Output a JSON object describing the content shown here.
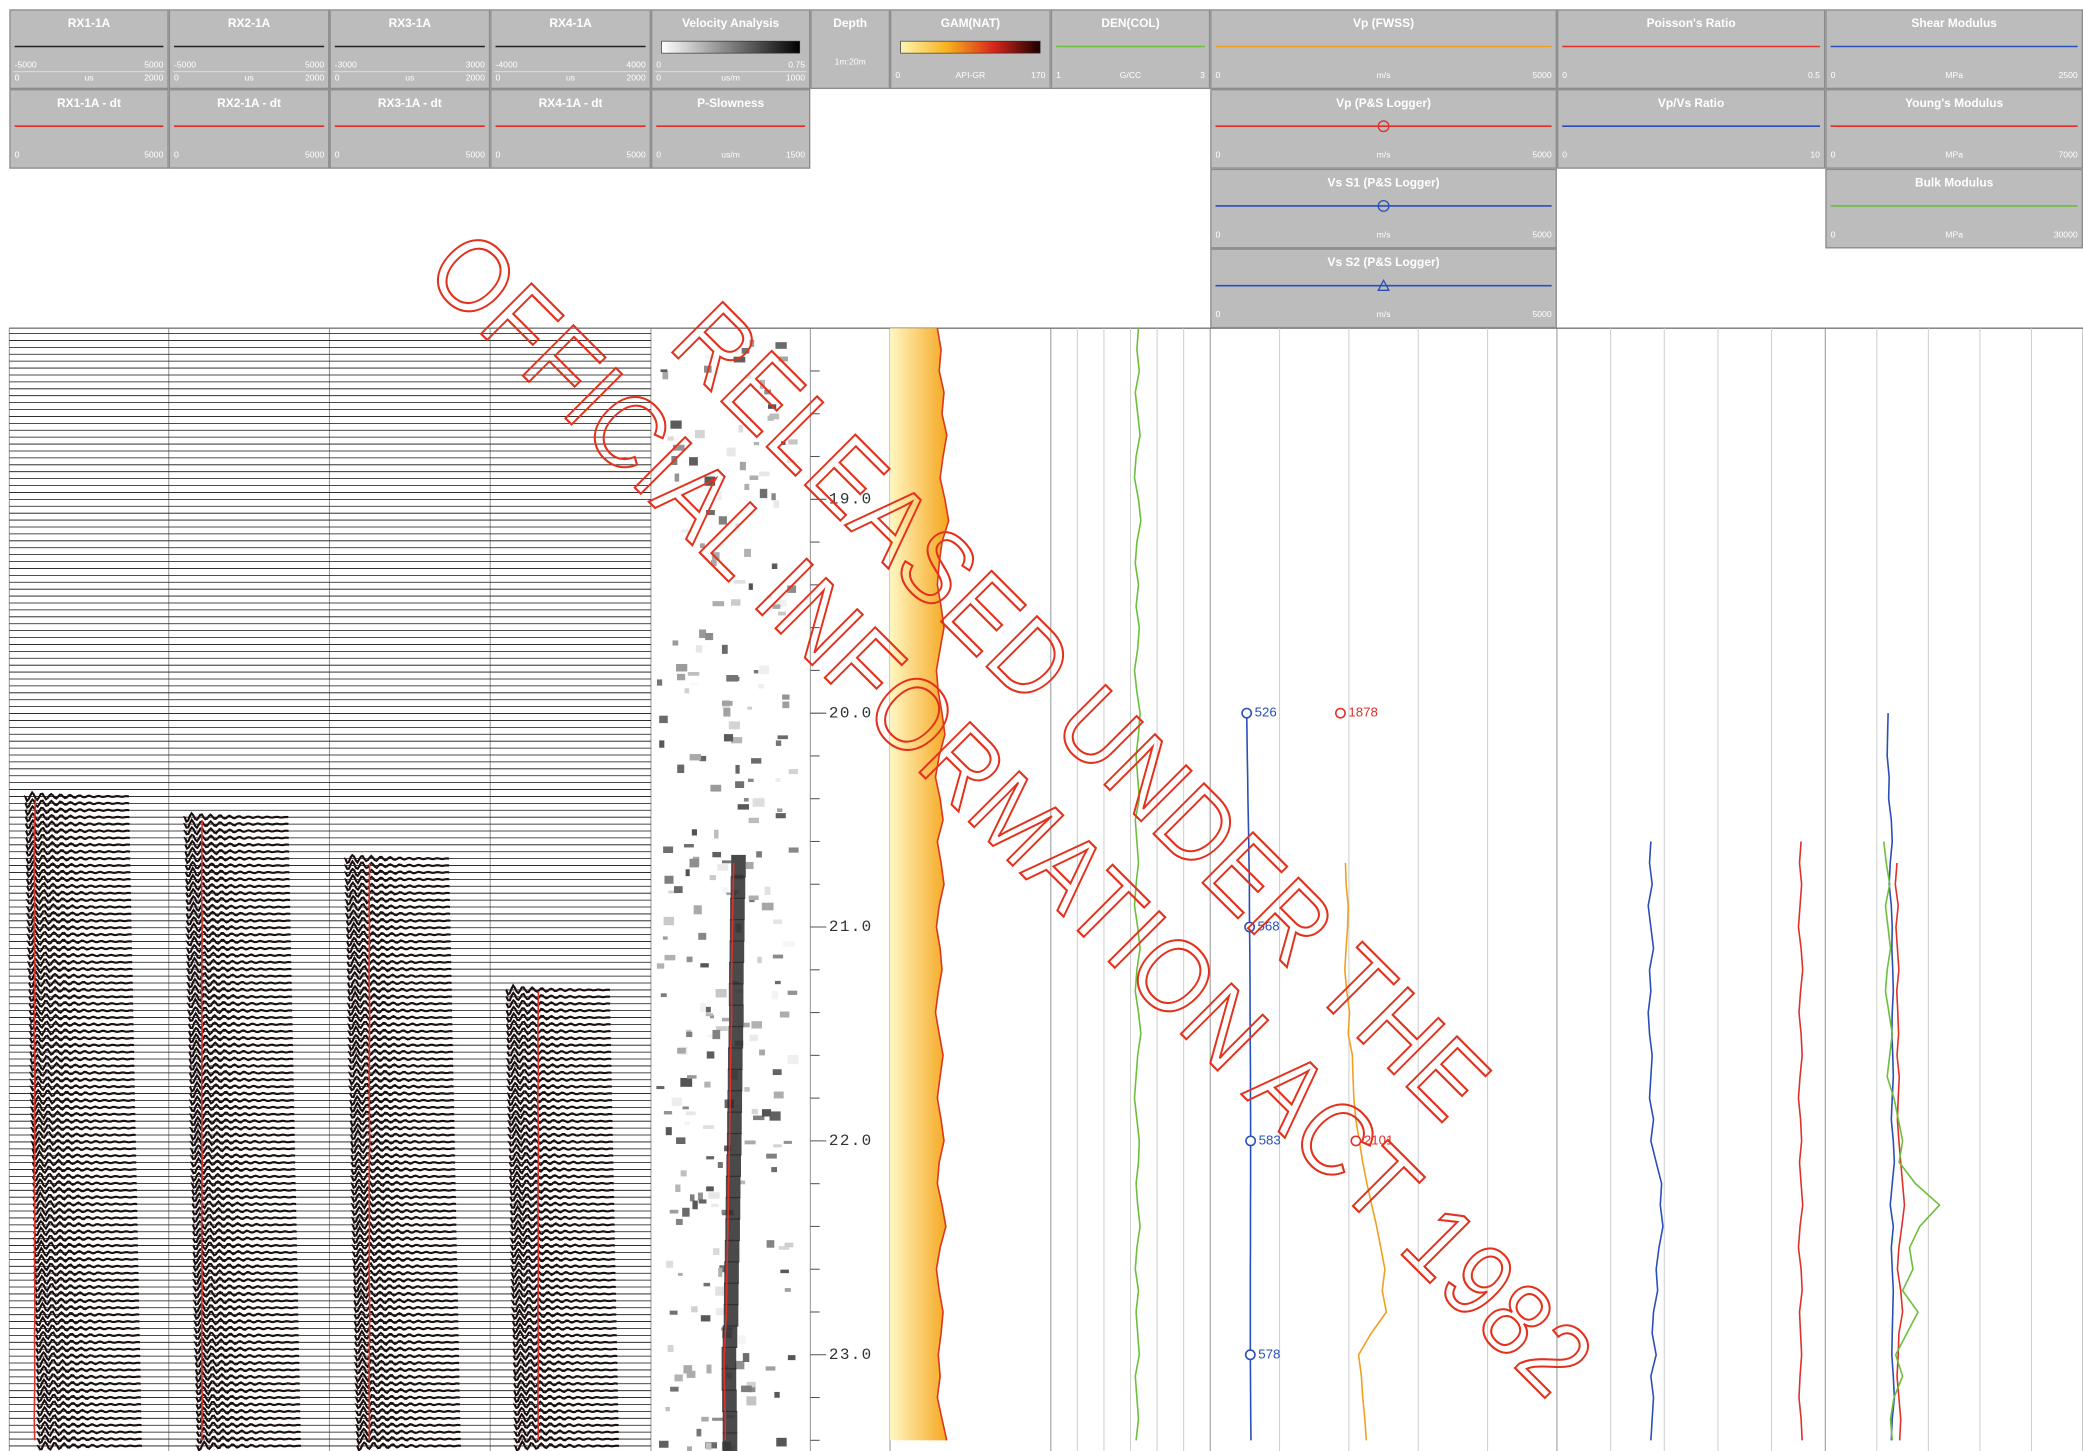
{
  "depths": [
    18.2,
    18.3,
    18.4,
    18.5,
    18.6,
    18.7,
    18.8,
    18.9,
    19,
    19.1,
    19.2,
    19.3,
    19.4,
    19.5,
    19.6,
    19.7,
    19.8,
    19.9,
    20,
    20.1,
    20.2,
    20.3,
    20.4,
    20.5,
    20.6,
    20.7,
    20.8,
    20.9,
    21,
    21.1,
    21.2,
    21.3,
    21.4,
    21.5,
    21.6,
    21.7,
    21.8,
    21.9,
    22,
    22.1,
    22.2,
    22.3,
    22.4,
    22.5,
    22.6,
    22.7,
    22.8,
    22.9,
    23,
    23.1,
    23.2,
    23.3,
    23.4
  ],
  "depth": {
    "lim": [
      18.2,
      23.45
    ],
    "ticks": [
      {
        "value": 19,
        "label": "19.0"
      },
      {
        "value": 20,
        "label": "20.0"
      },
      {
        "value": 21,
        "label": "21.0"
      },
      {
        "value": 22,
        "label": "22.0"
      },
      {
        "value": 23,
        "label": "23.0"
      }
    ],
    "minor_ticks": [
      18.4,
      18.6,
      18.8,
      19.2,
      19.4,
      19.6,
      19.8,
      20.2,
      20.4,
      20.6,
      20.8,
      21.2,
      21.4,
      21.6,
      21.8,
      22.2,
      22.4,
      22.6,
      22.8,
      23.2,
      23.4
    ]
  },
  "tracks": [
    {
      "waveform": true,
      "panels": [
        {
          "title": "RX1-1A",
          "min": -5000,
          "max": 5000,
          "color": "#222222",
          "time": {
            "min": 0,
            "unit": "us",
            "max": 2000
          }
        },
        {
          "title": "RX1-1A - dt",
          "min": 0,
          "max": 5000,
          "color": "#e0302a",
          "values": [
            null,
            null,
            null,
            null,
            null,
            null,
            null,
            null,
            null,
            null,
            null,
            null,
            null,
            null,
            null,
            null,
            null,
            null,
            null,
            null,
            null,
            null,
            820,
            800,
            790,
            785,
            790,
            795,
            780,
            790,
            800,
            795,
            790,
            785,
            800,
            805,
            790,
            795,
            800,
            790,
            785,
            795,
            800,
            790,
            795,
            800,
            805,
            790,
            795,
            800,
            790,
            785,
            795
          ]
        }
      ]
    },
    {
      "waveform": true,
      "panels": [
        {
          "title": "RX2-1A",
          "min": -5000,
          "max": 5000,
          "color": "#222222",
          "time": {
            "min": 0,
            "unit": "us",
            "max": 2000
          }
        },
        {
          "title": "RX2-1A - dt",
          "min": 0,
          "max": 5000,
          "color": "#e0302a",
          "values": [
            null,
            null,
            null,
            null,
            null,
            null,
            null,
            null,
            null,
            null,
            null,
            null,
            null,
            null,
            null,
            null,
            null,
            null,
            null,
            null,
            null,
            null,
            null,
            1040,
            1030,
            1035,
            1025,
            1030,
            1040,
            1035,
            1030,
            1025,
            1030,
            1040,
            1035,
            1030,
            1025,
            1035,
            1030,
            1040,
            1035,
            1030,
            1025,
            1030,
            1035,
            1040,
            1030,
            1025,
            1035,
            1030,
            1040,
            1035,
            1030
          ]
        }
      ]
    },
    {
      "waveform": true,
      "panels": [
        {
          "title": "RX3-1A",
          "min": -3000,
          "max": 3000,
          "color": "#222222",
          "time": {
            "min": 0,
            "unit": "us",
            "max": 2000
          }
        },
        {
          "title": "RX3-1A - dt",
          "min": 0,
          "max": 5000,
          "color": "#e0302a",
          "values": [
            null,
            null,
            null,
            null,
            null,
            null,
            null,
            null,
            null,
            null,
            null,
            null,
            null,
            null,
            null,
            null,
            null,
            null,
            null,
            null,
            null,
            null,
            null,
            null,
            null,
            1250,
            1240,
            1235,
            1245,
            1240,
            1230,
            1240,
            1250,
            1245,
            1240,
            1235,
            1240,
            1245,
            1250,
            1240,
            1235,
            1240,
            1245,
            1240,
            1235,
            1240,
            1250,
            1245,
            1240,
            1235,
            1240,
            1245,
            1240
          ]
        }
      ]
    },
    {
      "waveform": true,
      "panels": [
        {
          "title": "RX4-1A",
          "min": -4000,
          "max": 4000,
          "color": "#222222",
          "time": {
            "min": 0,
            "unit": "us",
            "max": 2000
          }
        },
        {
          "title": "RX4-1A - dt",
          "min": 0,
          "max": 5000,
          "color": "#e0302a",
          "values": [
            null,
            null,
            null,
            null,
            null,
            null,
            null,
            null,
            null,
            null,
            null,
            null,
            null,
            null,
            null,
            null,
            null,
            null,
            null,
            null,
            null,
            null,
            null,
            null,
            null,
            null,
            null,
            null,
            null,
            null,
            null,
            1500,
            1490,
            1485,
            1490,
            1495,
            1480,
            1490,
            1500,
            1495,
            1490,
            1485,
            1490,
            1495,
            1500,
            1490,
            1485,
            1490,
            1495,
            1490,
            1485,
            1490,
            1495
          ]
        }
      ]
    },
    {
      "semblance": true,
      "panels": [
        {
          "title": "Velocity Analysis",
          "min": 0,
          "max": 0.75,
          "gradient": [
            "#ffffff",
            "#000000"
          ],
          "time": {
            "min": 0,
            "unit": "us/m",
            "max": 1000
          }
        },
        {
          "title": "P-Slowness",
          "min": 0,
          "unit": "us/m",
          "max": 1500,
          "color": "#e0302a",
          "values": [
            null,
            null,
            null,
            null,
            null,
            null,
            null,
            null,
            null,
            null,
            null,
            null,
            null,
            null,
            null,
            null,
            null,
            null,
            null,
            null,
            null,
            null,
            null,
            null,
            null,
            780,
            775,
            770,
            768,
            765,
            760,
            758,
            760,
            755,
            750,
            748,
            745,
            742,
            740,
            735,
            730,
            728,
            725,
            720,
            715,
            712,
            710,
            700,
            690,
            690,
            695,
            700,
            700
          ]
        }
      ]
    },
    {
      "depth_track": true,
      "panels": [
        {
          "title": "Depth",
          "scale_text": "1m:20m"
        }
      ]
    },
    {
      "panels": [
        {
          "title": "GAM(NAT)",
          "min": 0,
          "unit": "API-GR",
          "max": 170,
          "gradient": [
            "#fff5b0",
            "#f7b21e",
            "#d8261b",
            "#1a0000"
          ],
          "color": "#d9381e",
          "fill_color": "#f6a51c",
          "values": [
            50,
            54,
            52,
            57,
            55,
            60,
            56,
            53,
            58,
            62,
            55,
            52,
            50,
            54,
            57,
            53,
            49,
            51,
            55,
            58,
            52,
            48,
            53,
            56,
            50,
            54,
            57,
            52,
            49,
            53,
            55,
            51,
            48,
            52,
            56,
            53,
            50,
            54,
            57,
            52,
            50,
            55,
            59,
            53,
            49,
            52,
            56,
            54,
            51,
            53,
            50,
            55,
            60
          ]
        }
      ]
    },
    {
      "grid_divisions": 6,
      "panels": [
        {
          "title": "DEN(COL)",
          "min": 1,
          "unit": "G/CC",
          "max": 3,
          "color": "#6cbf3c",
          "values": [
            2.1,
            2.08,
            2.11,
            2.06,
            2.09,
            2.12,
            2.07,
            2.05,
            2.1,
            2.13,
            2.08,
            2.06,
            2.1,
            2.07,
            2.11,
            2.09,
            2.05,
            2.08,
            2.12,
            2.1,
            2.07,
            2.09,
            2.11,
            2.06,
            2.08,
            2.1,
            2.07,
            2.05,
            2.09,
            2.12,
            2.08,
            2.06,
            2.1,
            2.13,
            2.09,
            2.07,
            2.05,
            2.08,
            2.11,
            2.1,
            2.07,
            2.09,
            2.12,
            2.08,
            2.06,
            2.1,
            2.07,
            2.09,
            2.11,
            2.06,
            2.08,
            2.1,
            2.07
          ]
        }
      ]
    },
    {
      "grid_divisions": 5,
      "panels": [
        {
          "title": "Vp (FWSS)",
          "min": 0,
          "unit": "m/s",
          "max": 5000,
          "color": "#f0a020",
          "values": [
            null,
            null,
            null,
            null,
            null,
            null,
            null,
            null,
            null,
            null,
            null,
            null,
            null,
            null,
            null,
            null,
            null,
            null,
            null,
            null,
            null,
            null,
            null,
            null,
            null,
            1950,
            1960,
            1990,
            1980,
            1960,
            1940,
            1970,
            2010,
            1990,
            2050,
            2060,
            2070,
            2100,
            2150,
            2200,
            2260,
            2330,
            2400,
            2460,
            2520,
            2480,
            2540,
            2320,
            2140,
            2180,
            2200,
            2230,
            2250
          ]
        },
        {
          "title": "Vp (P&S Logger)",
          "min": 0,
          "unit": "m/s",
          "max": 5000,
          "color": "#e0302a",
          "marker": "circle",
          "points": {
            "depths": [
              20,
              22
            ],
            "values": [
              1878,
              2101
            ]
          }
        },
        {
          "title": "Vs S1 (P&S Logger)",
          "min": 0,
          "unit": "m/s",
          "max": 5000,
          "color": "#2a4fb8",
          "marker": "circle",
          "points": {
            "depths": [
              20,
              21,
              22,
              23
            ],
            "values": [
              526,
              568,
              583,
              578
            ]
          },
          "values": [
            null,
            null,
            null,
            null,
            null,
            null,
            null,
            null,
            null,
            null,
            null,
            null,
            null,
            null,
            null,
            null,
            null,
            null,
            526,
            530,
            535,
            540,
            545,
            550,
            555,
            560,
            565,
            566,
            568,
            570,
            572,
            574,
            575,
            577,
            578,
            580,
            581,
            582,
            583,
            582,
            582,
            581,
            580,
            580,
            579,
            579,
            578,
            578,
            578,
            580,
            582,
            585,
            588
          ]
        },
        {
          "title": "Vs S2 (P&S Logger)",
          "min": 0,
          "unit": "m/s",
          "max": 5000,
          "color": "#2a4fb8",
          "marker": "triangle"
        }
      ]
    },
    {
      "grid_divisions": 5,
      "panels": [
        {
          "title": "Poisson's Ratio",
          "min": 0,
          "max": 0.5,
          "color": "#e0302a",
          "values": [
            null,
            null,
            null,
            null,
            null,
            null,
            null,
            null,
            null,
            null,
            null,
            null,
            null,
            null,
            null,
            null,
            null,
            null,
            null,
            null,
            null,
            null,
            null,
            null,
            0.455,
            0.452,
            0.456,
            0.453,
            0.45,
            0.455,
            0.458,
            0.454,
            0.451,
            0.455,
            0.457,
            0.453,
            0.45,
            0.454,
            0.456,
            0.452,
            0.455,
            0.458,
            0.453,
            0.45,
            0.455,
            0.457,
            0.452,
            0.454,
            0.456,
            0.453,
            0.451,
            0.455,
            0.457
          ]
        },
        {
          "title": "Vp/Vs Ratio",
          "min": 0,
          "max": 10,
          "color": "#2a4fb8",
          "values": [
            null,
            null,
            null,
            null,
            null,
            null,
            null,
            null,
            null,
            null,
            null,
            null,
            null,
            null,
            null,
            null,
            null,
            null,
            null,
            null,
            null,
            null,
            null,
            null,
            3.5,
            3.45,
            3.55,
            3.4,
            3.5,
            3.6,
            3.45,
            3.5,
            3.4,
            3.45,
            3.55,
            3.5,
            3.45,
            3.6,
            3.5,
            3.7,
            3.9,
            3.85,
            3.95,
            3.8,
            3.7,
            3.75,
            3.6,
            3.55,
            3.7,
            3.5,
            3.6,
            3.55,
            3.5
          ]
        }
      ]
    },
    {
      "grid_divisions": 5,
      "panels": [
        {
          "title": "Shear Modulus",
          "min": 0,
          "unit": "MPa",
          "max": 2500,
          "color": "#2a4fb8",
          "values": [
            null,
            null,
            null,
            null,
            null,
            null,
            null,
            null,
            null,
            null,
            null,
            null,
            null,
            null,
            null,
            null,
            null,
            null,
            610,
            605,
            600,
            620,
            615,
            640,
            650,
            630,
            620,
            640,
            650,
            645,
            655,
            660,
            650,
            645,
            655,
            660,
            650,
            640,
            660,
            670,
            650,
            630,
            660,
            640,
            650,
            660,
            655,
            650,
            645,
            660,
            670,
            650,
            640
          ]
        },
        {
          "title": "Young's Modulus",
          "min": 0,
          "unit": "MPa",
          "max": 7000,
          "color": "#e0302a",
          "values": [
            null,
            null,
            null,
            null,
            null,
            null,
            null,
            null,
            null,
            null,
            null,
            null,
            null,
            null,
            null,
            null,
            null,
            null,
            null,
            null,
            null,
            null,
            null,
            null,
            null,
            1950,
            1900,
            1980,
            1920,
            1960,
            2000,
            1940,
            1970,
            1990,
            1950,
            2010,
            1980,
            1960,
            2000,
            2050,
            2100,
            2150,
            2080,
            2000,
            1960,
            2050,
            2100,
            2000,
            1980,
            1950,
            2000,
            2050,
            2020
          ]
        },
        {
          "title": "Bulk Modulus",
          "min": 0,
          "unit": "MPa",
          "max": 30000,
          "color": "#6cbf3c",
          "values": [
            null,
            null,
            null,
            null,
            null,
            null,
            null,
            null,
            null,
            null,
            null,
            null,
            null,
            null,
            null,
            null,
            null,
            null,
            null,
            null,
            null,
            null,
            null,
            null,
            6800,
            7100,
            7500,
            7000,
            7300,
            7600,
            7200,
            7000,
            7400,
            7800,
            7500,
            7200,
            8000,
            8500,
            9000,
            8600,
            10500,
            13300,
            11000,
            9800,
            10200,
            9000,
            10800,
            9500,
            8200,
            9000,
            8000,
            7600,
            7800
          ]
        }
      ]
    }
  ],
  "watermark": [
    "RELEASED UNDER THE",
    "OFFICIAL INFORMATION ACT 1982"
  ]
}
